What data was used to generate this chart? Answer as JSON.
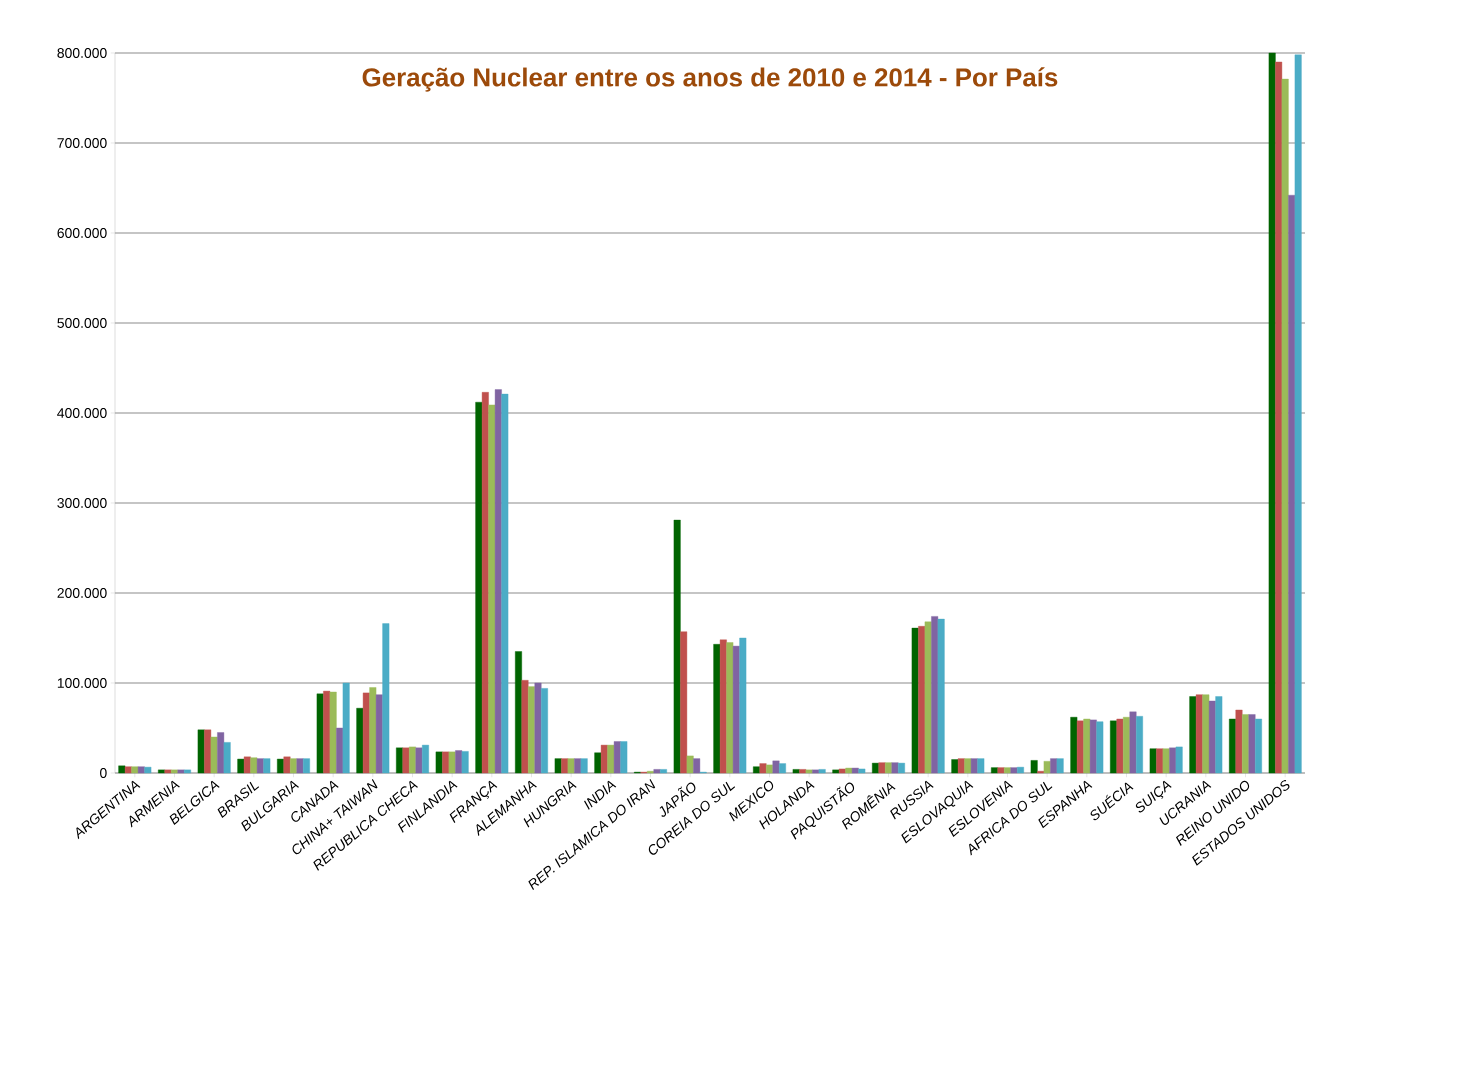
{
  "chart_data": {
    "type": "bar",
    "title": "Geração Nuclear  entre os  anos de 2010 e 2014 - Por País",
    "categories": [
      "ARGENTINA",
      "ARMENIA",
      "BELGICA",
      "BRASIL",
      "BULGARIA",
      "CANADA",
      "CHINA+ TAIWAN",
      "REPUBLICA CHECA",
      "FINLANDIA",
      "FRANÇA",
      "ALEMANHA",
      "HUNGRIA",
      "INDIA",
      "REP. ISLAMICA DO IRAN",
      "JAPÃO",
      "COREIA DO SUL",
      "MEXICO",
      "HOLANDA",
      "PAQUISTÃO",
      "ROMÊNIA",
      "RUSSIA",
      "ESLOVAQUIA",
      "ESLOVENIA",
      "AFRICA DO SUL",
      "ESPANHA",
      "SUÉCIA",
      "SUIÇA",
      "UCRANIA",
      "REINO UNIDO",
      "ESTADOS UNIDOS"
    ],
    "series": [
      {
        "color": "#006400",
        "values": [
          8000,
          3500,
          48000,
          15500,
          15500,
          88000,
          72000,
          28000,
          23500,
          412000,
          135000,
          16000,
          22500,
          1000,
          281000,
          143000,
          7000,
          4000,
          3500,
          11000,
          161000,
          15000,
          6000,
          14000,
          62000,
          58000,
          27000,
          85000,
          60000,
          800000
        ]
      },
      {
        "color": "#c0504d",
        "values": [
          7000,
          3500,
          48000,
          18000,
          18000,
          91000,
          89000,
          28000,
          23500,
          423000,
          103000,
          16000,
          31000,
          1000,
          157000,
          148000,
          10500,
          4000,
          4500,
          11500,
          163000,
          16000,
          6000,
          2000,
          58000,
          60000,
          27000,
          87000,
          70000,
          790000
        ]
      },
      {
        "color": "#9bbb59",
        "values": [
          7000,
          3500,
          40000,
          17000,
          16000,
          90000,
          95000,
          29000,
          23500,
          409000,
          96000,
          16000,
          31000,
          2000,
          19000,
          145000,
          9000,
          3500,
          5500,
          11500,
          168000,
          16000,
          6000,
          13000,
          60000,
          62000,
          27000,
          87000,
          65000,
          771000
        ]
      },
      {
        "color": "#8064a2",
        "values": [
          7000,
          3500,
          45000,
          16000,
          16000,
          50000,
          87000,
          28000,
          25000,
          426000,
          100000,
          16000,
          35000,
          4000,
          16000,
          141000,
          13500,
          3500,
          5500,
          11500,
          174000,
          16000,
          6000,
          16000,
          59000,
          68000,
          28000,
          80000,
          65000,
          642000
        ]
      },
      {
        "color": "#4bacc6",
        "values": [
          6500,
          3500,
          34000,
          16000,
          16000,
          100000,
          166000,
          31000,
          24000,
          421000,
          94000,
          16000,
          35000,
          4000,
          1000,
          150000,
          10500,
          4000,
          4500,
          11000,
          171000,
          16000,
          6500,
          16000,
          57000,
          63000,
          29000,
          85000,
          60000,
          798000
        ]
      }
    ],
    "ylim": [
      0,
      800000
    ],
    "yticks": [
      0,
      {
        "value": 100000,
        "label": "100.000"
      },
      {
        "value": 200000,
        "label": "200.000"
      },
      {
        "value": 300000,
        "label": "300.000"
      },
      {
        "value": 400000,
        "label": "400.000"
      },
      {
        "value": 500000,
        "label": "500.000"
      },
      {
        "value": 600000,
        "label": "600.000"
      },
      {
        "value": 700000,
        "label": "700.000"
      },
      {
        "value": 800000,
        "label": "800.000"
      }
    ],
    "grid": "y",
    "legend": false
  }
}
